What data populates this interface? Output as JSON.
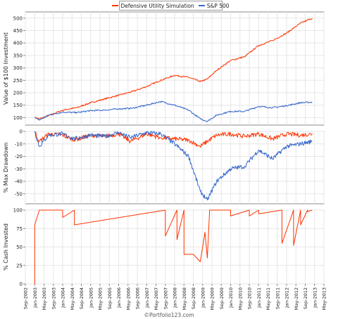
{
  "chart_data": [
    {
      "type": "line",
      "legend": [
        "Defensive Utility Simulation",
        "S&P 500"
      ],
      "legend_position": "top-center",
      "ylabel": "Value of $100 Investment",
      "ylim": [
        70,
        525
      ],
      "yticks": [
        100,
        150,
        200,
        250,
        300,
        350,
        400,
        450,
        500
      ],
      "grid": true,
      "series": [
        {
          "name": "Defensive Utility Simulation",
          "color": "#ff3300",
          "x": [
            "2003-01",
            "2003-03",
            "2003-07",
            "2004-01",
            "2004-07",
            "2005-01",
            "2005-07",
            "2006-01",
            "2006-07",
            "2007-01",
            "2007-07",
            "2008-01",
            "2008-07",
            "2008-12",
            "2009-03",
            "2009-07",
            "2010-01",
            "2010-07",
            "2011-01",
            "2011-07",
            "2012-01",
            "2012-07",
            "2012-12"
          ],
          "values": [
            100,
            95,
            108,
            130,
            140,
            160,
            175,
            190,
            205,
            225,
            250,
            270,
            262,
            245,
            255,
            290,
            330,
            345,
            390,
            410,
            440,
            480,
            500
          ]
        },
        {
          "name": "S&P 500",
          "color": "#3366cc",
          "x": [
            "2003-01",
            "2003-03",
            "2003-07",
            "2004-01",
            "2004-07",
            "2005-01",
            "2005-07",
            "2006-01",
            "2006-07",
            "2007-01",
            "2007-07",
            "2008-01",
            "2008-07",
            "2008-12",
            "2009-03",
            "2009-07",
            "2010-01",
            "2010-07",
            "2011-01",
            "2011-07",
            "2012-01",
            "2012-07",
            "2012-12"
          ],
          "values": [
            100,
            90,
            110,
            122,
            120,
            128,
            130,
            135,
            138,
            150,
            165,
            150,
            130,
            95,
            85,
            110,
            125,
            125,
            145,
            140,
            148,
            160,
            162
          ]
        }
      ]
    },
    {
      "type": "line",
      "ylabel": "% Max Drawdown",
      "ylim": [
        -58,
        0
      ],
      "yticks": [
        0,
        -10,
        -20,
        -30,
        -40,
        -50
      ],
      "grid": true,
      "series": [
        {
          "name": "Defensive Utility Simulation",
          "color": "#ff3300",
          "x": [
            "2003-01",
            "2003-03",
            "2003-07",
            "2004-01",
            "2004-06",
            "2005-01",
            "2005-07",
            "2006-01",
            "2006-06",
            "2007-01",
            "2007-07",
            "2008-01",
            "2008-07",
            "2008-12",
            "2009-03",
            "2009-07",
            "2010-01",
            "2010-07",
            "2011-01",
            "2011-07",
            "2012-01",
            "2012-07",
            "2012-12"
          ],
          "values": [
            0,
            -8,
            -2,
            -3,
            -7,
            -3,
            -4,
            -2,
            -8,
            -2,
            -5,
            -6,
            -7,
            -12,
            -8,
            -3,
            -2,
            -4,
            -2,
            -6,
            -2,
            -3,
            -2
          ]
        },
        {
          "name": "S&P 500",
          "color": "#3366cc",
          "x": [
            "2003-01",
            "2003-03",
            "2003-07",
            "2004-01",
            "2004-06",
            "2005-01",
            "2005-07",
            "2006-01",
            "2006-06",
            "2007-01",
            "2007-07",
            "2008-01",
            "2008-07",
            "2008-12",
            "2009-03",
            "2009-07",
            "2010-01",
            "2010-07",
            "2011-01",
            "2011-07",
            "2012-01",
            "2012-07",
            "2012-12"
          ],
          "values": [
            0,
            -12,
            -3,
            -2,
            -6,
            -3,
            -4,
            -1,
            -5,
            -1,
            -2,
            -10,
            -20,
            -48,
            -55,
            -40,
            -30,
            -28,
            -15,
            -22,
            -12,
            -10,
            -8
          ]
        }
      ]
    },
    {
      "type": "line",
      "ylabel": "% Cash Invested",
      "ylim": [
        0,
        100
      ],
      "yticks": [
        0,
        25,
        50,
        75,
        100
      ],
      "grid": true,
      "xticks": [
        "Sep-2002",
        "Jan-2003",
        "May-2003",
        "Sep-2003",
        "Jan-2004",
        "May-2004",
        "Sep-2004",
        "Jan-2005",
        "May-2005",
        "Sep-2005",
        "Jan-2006",
        "May-2006",
        "Sep-2006",
        "Jan-2007",
        "May-2007",
        "Sep-2007",
        "Jan-2008",
        "May-2008",
        "Sep-2008",
        "Jan-2009",
        "May-2009",
        "Sep-2009",
        "Jan-2010",
        "May-2010",
        "Sep-2010",
        "Jan-2011",
        "May-2011",
        "Sep-2011",
        "Jan-2012",
        "May-2012",
        "Sep-2012",
        "Jan-2013",
        "May-2013"
      ],
      "series": [
        {
          "name": "Defensive Utility Simulation",
          "color": "#ff3300",
          "x": [
            "2003-01",
            "2003-01",
            "2003-02",
            "2003-03",
            "2004-01",
            "2004-01",
            "2004-06",
            "2004-06",
            "2007-09",
            "2007-09",
            "2008-02",
            "2008-02",
            "2008-05",
            "2008-05",
            "2008-09",
            "2008-12",
            "2009-02",
            "2009-03",
            "2009-04",
            "2009-05",
            "2010-01",
            "2010-01",
            "2010-09",
            "2010-09",
            "2011-01",
            "2011-01",
            "2011-11",
            "2011-11",
            "2012-04",
            "2012-04",
            "2012-07",
            "2012-07",
            "2012-10",
            "2012-10",
            "2012-12"
          ],
          "values": [
            0,
            80,
            90,
            100,
            100,
            90,
            100,
            80,
            100,
            65,
            100,
            60,
            100,
            40,
            40,
            30,
            70,
            35,
            100,
            100,
            100,
            92,
            100,
            92,
            100,
            95,
            100,
            55,
            100,
            52,
            100,
            80,
            100,
            98,
            100
          ]
        }
      ]
    }
  ],
  "x_range": [
    "2002-09",
    "2013-05"
  ],
  "credit": "©Portfolio123.com"
}
